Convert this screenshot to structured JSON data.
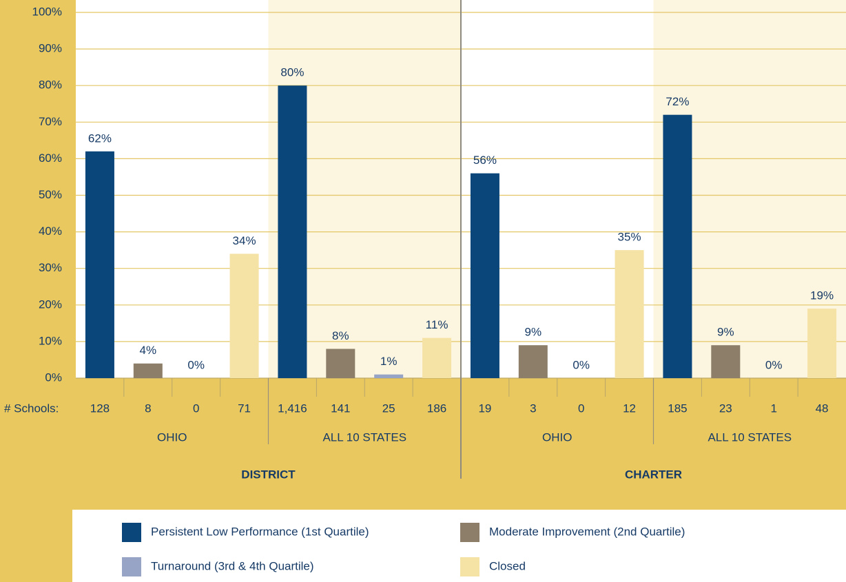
{
  "chart_data": {
    "type": "bar",
    "categories": [
      "OHIO",
      "ALL 10 STATES",
      "OHIO",
      "ALL 10 STATES"
    ],
    "groups": [
      "DISTRICT",
      "CHARTER"
    ],
    "counts_label": "# Schools:",
    "series": [
      {
        "name": "Persistent Low Performance (1st Quartile)",
        "color": "#0b467a",
        "values": [
          62,
          80,
          56,
          72
        ],
        "value_labels": [
          "62%",
          "80%",
          "56%",
          "72%"
        ],
        "schools": [
          128,
          {
            "value": 1416,
            "label": "1,416"
          },
          19,
          185
        ]
      },
      {
        "name": "Moderate Improvement (2nd Quartile)",
        "color": "#8c7e68",
        "values": [
          4,
          8,
          9,
          9
        ],
        "value_labels": [
          "4%",
          "8%",
          "9%",
          "9%"
        ],
        "schools": [
          8,
          141,
          3,
          23
        ]
      },
      {
        "name": "Turnaround (3rd & 4th Quartile)",
        "color": "#98a4c6",
        "values": [
          0,
          1,
          0,
          0
        ],
        "value_labels": [
          "0%",
          "1%",
          "0%",
          "0%"
        ],
        "schools": [
          0,
          25,
          0,
          1
        ]
      },
      {
        "name": "Closed",
        "color": "#f5e2a5",
        "values": [
          34,
          11,
          35,
          19
        ],
        "value_labels": [
          "34%",
          "11%",
          "35%",
          "19%"
        ],
        "schools": [
          71,
          186,
          12,
          48
        ]
      }
    ],
    "ylim": [
      0,
      100
    ],
    "yticks": [
      {
        "value": 0,
        "label": "0%"
      },
      {
        "value": 10,
        "label": "10%"
      },
      {
        "value": 20,
        "label": "20%"
      },
      {
        "value": 30,
        "label": "30%"
      },
      {
        "value": 40,
        "label": "40%"
      },
      {
        "value": 50,
        "label": "50%"
      },
      {
        "value": 60,
        "label": "60%"
      },
      {
        "value": 70,
        "label": "70%"
      },
      {
        "value": 80,
        "label": "80%"
      },
      {
        "value": 90,
        "label": "90%"
      },
      {
        "value": 100,
        "label": "100%"
      }
    ],
    "grid": true,
    "legend": "bottom"
  }
}
